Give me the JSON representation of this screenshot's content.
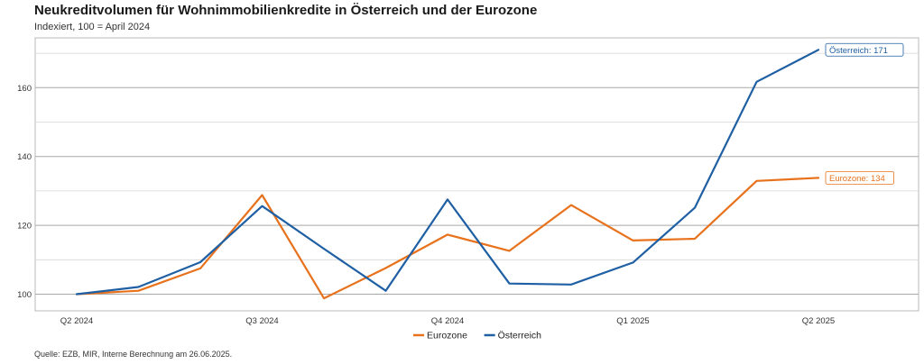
{
  "chart_data": {
    "type": "line",
    "title": "Neukreditvolumen für Wohnimmobilienkredite in Österreich und der Eurozone",
    "subtitle": "Indexiert, 100 = April 2024",
    "source": "Quelle: EZB, MIR,  Interne Berechnung am 26.06.2025.",
    "xlabel": "",
    "ylabel": "",
    "x_tick_labels": [
      "Q2 2024",
      "Q3 2024",
      "Q4 2024",
      "Q1 2025",
      "Q2 2025"
    ],
    "x_tick_indices": [
      0,
      3,
      6,
      9,
      12
    ],
    "y_ticks": [
      100,
      120,
      140,
      160
    ],
    "ylim": [
      95,
      173
    ],
    "grid": true,
    "series": [
      {
        "name": "Eurozone",
        "color": "#e8711c",
        "values": [
          100,
          101,
          107.5,
          128.8,
          98.8,
          107.6,
          117.3,
          112.6,
          125.9,
          115.6,
          116.1,
          132.9,
          133.8
        ],
        "end_label": "Eurozone: 134"
      },
      {
        "name": "Österreich",
        "color": "#1f5fa3",
        "values": [
          100,
          102.1,
          109.3,
          125.6,
          113.2,
          101,
          127.5,
          103.1,
          102.8,
          109.2,
          125.1,
          161.7,
          171
        ],
        "end_label": "Österreich: 171"
      }
    ]
  }
}
